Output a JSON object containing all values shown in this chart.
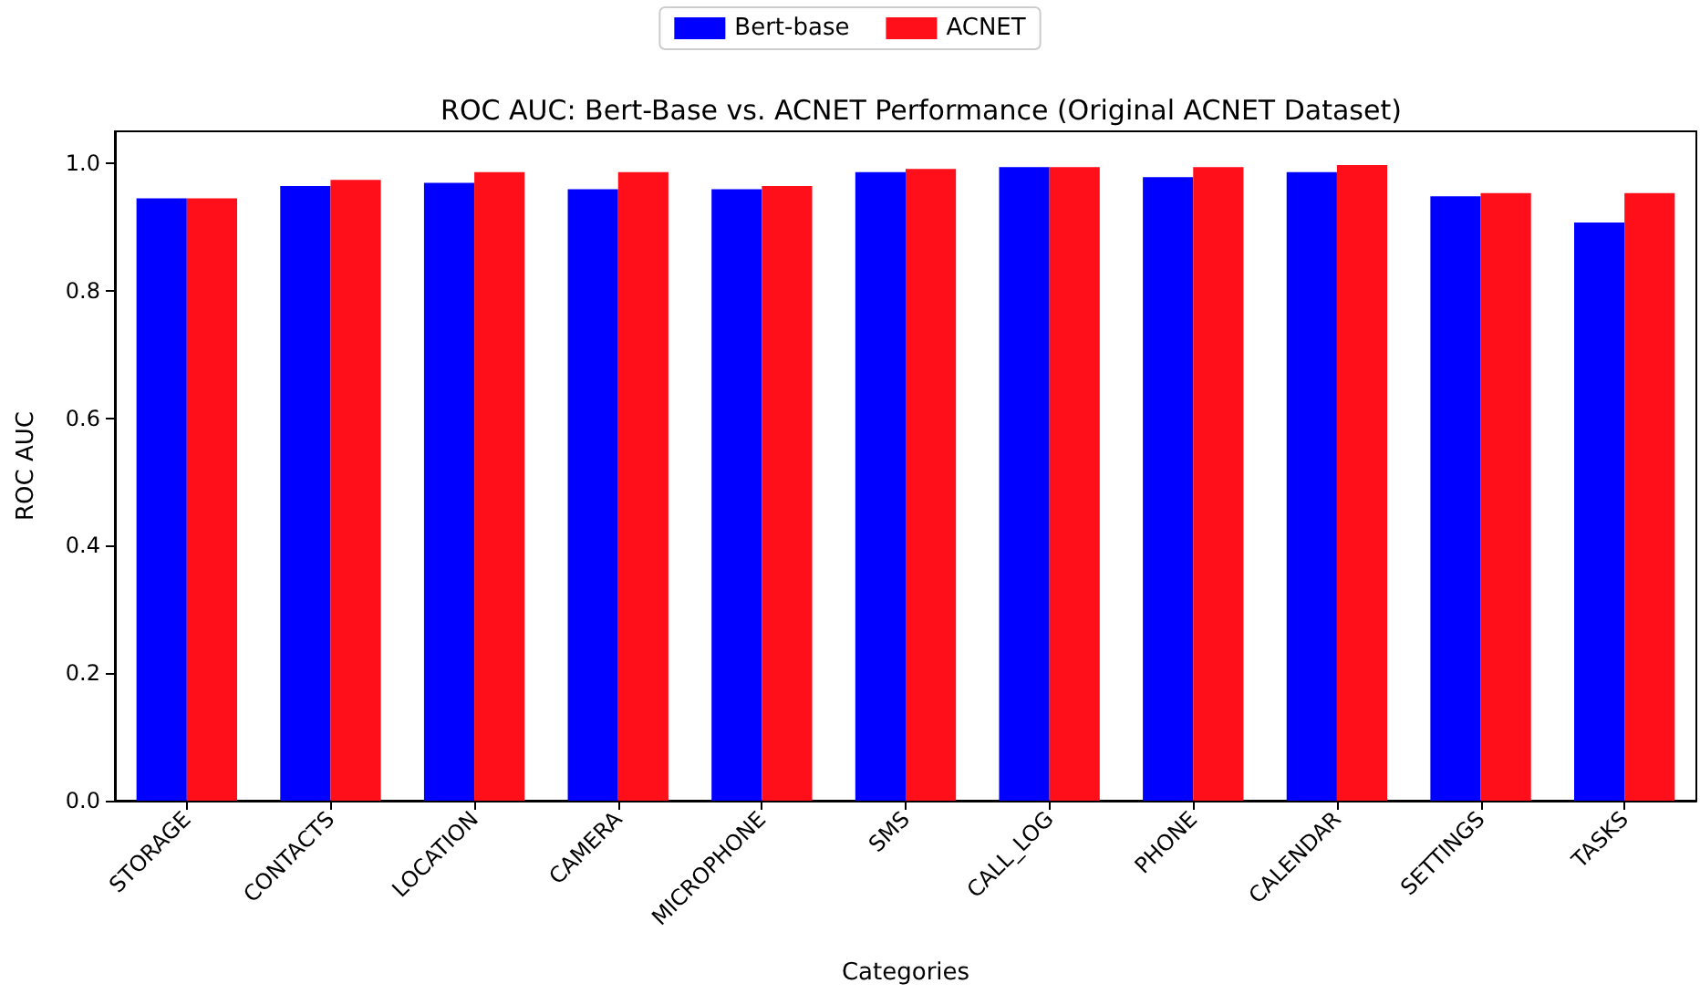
{
  "chart_data": {
    "type": "bar",
    "title": "ROC AUC: Bert-Base vs. ACNET Performance (Original ACNET Dataset)",
    "xlabel": "Categories",
    "ylabel": "ROC AUC",
    "categories": [
      "STORAGE",
      "CONTACTS",
      "LOCATION",
      "CAMERA",
      "MICROPHONE",
      "SMS",
      "CALL_LOG",
      "PHONE",
      "CALENDAR",
      "SETTINGS",
      "TASKS"
    ],
    "series": [
      {
        "name": "Bert-base",
        "color": "#0000ff",
        "values": [
          0.945,
          0.964,
          0.969,
          0.959,
          0.959,
          0.986,
          0.994,
          0.978,
          0.986,
          0.948,
          0.907
        ]
      },
      {
        "name": "ACNET",
        "color": "#ff0f1a",
        "values": [
          0.945,
          0.974,
          0.986,
          0.986,
          0.964,
          0.991,
          0.994,
          0.994,
          0.997,
          0.953,
          0.953
        ]
      }
    ],
    "ylim": [
      0,
      1.05
    ],
    "yticks": [
      {
        "value": 0,
        "label": "0.0"
      },
      0.2,
      0.4,
      0.6,
      0.8,
      {
        "value": 1,
        "label": "1.0"
      }
    ],
    "grid": false,
    "legend": "top"
  }
}
